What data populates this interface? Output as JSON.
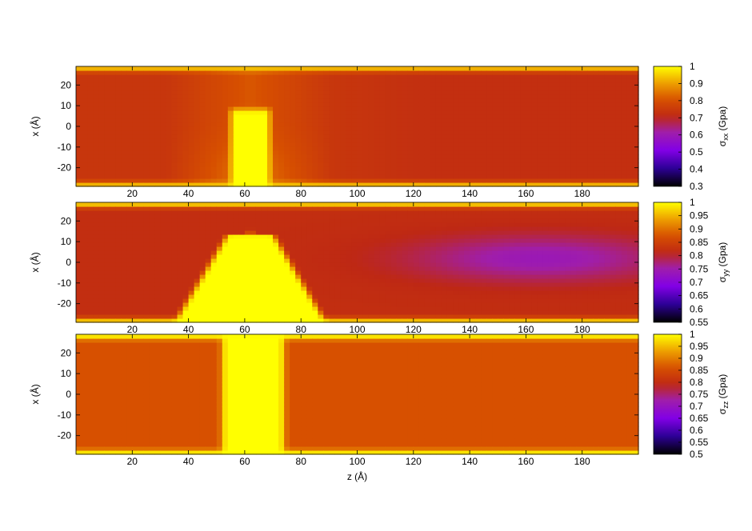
{
  "chart_data": [
    {
      "type": "heatmap",
      "panel": "top",
      "ylabel": "x (Å)",
      "colorbar_label": "σxx (Gpa)",
      "colorbar_ticks": [
        "1",
        "0.9",
        "0.8",
        "0.7",
        "0.6",
        "0.5",
        "0.4",
        "0.3"
      ],
      "zlim": [
        0.3,
        1.0
      ],
      "xlim": [
        0,
        200
      ],
      "ylim": [
        -29,
        29
      ],
      "x_ticks": [
        "20",
        "40",
        "60",
        "80",
        "100",
        "120",
        "140",
        "160",
        "180"
      ],
      "y_ticks": [
        "20",
        "10",
        "0",
        "-10",
        "-20"
      ],
      "field": {
        "base": 0.74,
        "edge_value": 0.95,
        "features": [
          {
            "kind": "hot_column",
            "z_center": 62,
            "z_halfwidth": 6,
            "x_from": -29,
            "x_to": 8,
            "value": 1.0
          },
          {
            "kind": "halo",
            "z_center": 62,
            "z_radius": 30,
            "value": 0.86
          },
          {
            "kind": "cool_region",
            "z_from": 110,
            "z_to": 200,
            "value": 0.72
          }
        ]
      }
    },
    {
      "type": "heatmap",
      "panel": "middle",
      "ylabel": "x (Å)",
      "colorbar_label": "σyy (Gpa)",
      "colorbar_ticks": [
        "1",
        "0.95",
        "0.9",
        "0.85",
        "0.8",
        "0.75",
        "0.7",
        "0.65",
        "0.6",
        "0.55"
      ],
      "zlim": [
        0.55,
        1.0
      ],
      "xlim": [
        0,
        200
      ],
      "ylim": [
        -29,
        29
      ],
      "x_ticks": [
        "20",
        "40",
        "60",
        "80",
        "100",
        "120",
        "140",
        "160",
        "180"
      ],
      "y_ticks": [
        "20",
        "10",
        "0",
        "-10",
        "-20"
      ],
      "field": {
        "base": 0.82,
        "edge_value": 0.98,
        "features": [
          {
            "kind": "hot_cone",
            "z_center": 62,
            "top_halfwidth": 7,
            "bottom_halfwidth": 26,
            "x_top": 14,
            "value": 1.0
          },
          {
            "kind": "cool_region",
            "z_center": 165,
            "x_center": 2,
            "z_radius": 50,
            "x_radius": 12,
            "value": 0.74
          }
        ]
      }
    },
    {
      "type": "heatmap",
      "panel": "bottom",
      "ylabel": "x (Å)",
      "xlabel": "z (Å)",
      "colorbar_label": "σzz (Gpa)",
      "colorbar_ticks": [
        "1",
        "0.95",
        "0.9",
        "0.85",
        "0.8",
        "0.75",
        "0.7",
        "0.65",
        "0.6",
        "0.55",
        "0.5"
      ],
      "zlim": [
        0.5,
        1.0
      ],
      "xlim": [
        0,
        200
      ],
      "ylim": [
        -29,
        29
      ],
      "x_ticks": [
        "20",
        "40",
        "60",
        "80",
        "100",
        "120",
        "140",
        "160",
        "180"
      ],
      "y_ticks": [
        "20",
        "10",
        "0",
        "-10",
        "-20"
      ],
      "field": {
        "base": 0.86,
        "edge_value": 1.0,
        "features": [
          {
            "kind": "hot_column",
            "z_center": 63,
            "z_halfwidth": 10,
            "x_from": -29,
            "x_to": 29,
            "value": 1.0
          }
        ]
      }
    }
  ],
  "colormap": "gnuplot-black-blue-magenta-red-orange-yellow"
}
